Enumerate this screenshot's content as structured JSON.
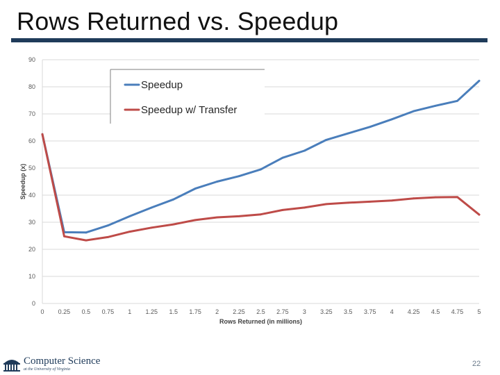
{
  "slide": {
    "title": "Rows Returned vs. Speedup",
    "page_number": "22",
    "logo_text": "Computer Science",
    "logo_subtext": "at the University of Virginia"
  },
  "colors": {
    "title_rule": "#1f3b5a",
    "speedup": "#4a7ebb",
    "speedup_transfer": "#be4b48",
    "grid": "#d9d9d9",
    "axis_text": "#595959"
  },
  "chart_data": {
    "type": "line",
    "title": "",
    "xlabel": "Rows Returned (in millions)",
    "ylabel": "Speedup (x)",
    "x": [
      0,
      0.25,
      0.5,
      0.75,
      1,
      1.25,
      1.5,
      1.75,
      2,
      2.25,
      2.5,
      2.75,
      3,
      3.25,
      3.5,
      3.75,
      4,
      4.25,
      4.5,
      4.75,
      5
    ],
    "x_tick_labels": [
      "0",
      "0.25",
      "0.5",
      "0.75",
      "1",
      "1.25",
      "1.5",
      "1.75",
      "2",
      "2.25",
      "2.5",
      "2.75",
      "3",
      "3.25",
      "3.5",
      "3.75",
      "4",
      "4.25",
      "4.5",
      "4.75",
      "5"
    ],
    "ylim": [
      0,
      90
    ],
    "y_ticks": [
      0,
      10,
      20,
      30,
      40,
      50,
      60,
      70,
      80,
      90
    ],
    "grid": "horizontal",
    "legend_position": "top-left",
    "series": [
      {
        "name": "Speedup",
        "color": "#4a7ebb",
        "values": [
          62.5,
          26.3,
          26.2,
          28.8,
          32.2,
          35.4,
          38.4,
          42.4,
          45.0,
          47.0,
          49.5,
          53.8,
          56.4,
          60.4,
          62.8,
          65.2,
          68.0,
          71.0,
          73.0,
          74.8,
          82.2
        ]
      },
      {
        "name": "Speedup w/ Transfer",
        "color": "#be4b48",
        "values": [
          62.5,
          24.8,
          23.3,
          24.5,
          26.5,
          28.0,
          29.2,
          30.8,
          31.8,
          32.2,
          32.9,
          34.5,
          35.4,
          36.7,
          37.2,
          37.6,
          38.0,
          38.8,
          39.2,
          39.3,
          32.8
        ]
      }
    ]
  }
}
